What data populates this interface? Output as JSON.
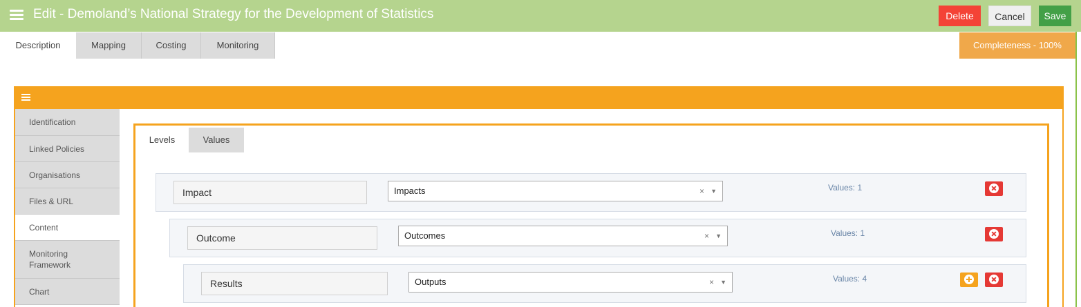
{
  "header": {
    "menu_icon": "hamburger-menu-icon",
    "title": "Edit - Demoland’s National Strategy for the Development of Statistics",
    "delete_label": "Delete",
    "cancel_label": "Cancel",
    "save_label": "Save",
    "color": "#b5d48e"
  },
  "top_tabs": [
    {
      "label": "Description",
      "active": true
    },
    {
      "label": "Mapping",
      "active": false
    },
    {
      "label": "Costing",
      "active": false
    },
    {
      "label": "Monitoring",
      "active": false
    }
  ],
  "completeness": "Completeness - 100%",
  "panel": {
    "menu_icon": "hamburger-menu-icon",
    "accent": "#f5a31e"
  },
  "side_menu": [
    {
      "label": "Identification",
      "active": false
    },
    {
      "label": "Linked Policies",
      "active": false
    },
    {
      "label": "Organisations",
      "active": false
    },
    {
      "label": "Files & URL",
      "active": false
    },
    {
      "label": "Content",
      "active": true
    },
    {
      "label": "Monitoring Framework",
      "active": false
    },
    {
      "label": "Chart",
      "active": false
    }
  ],
  "inner_tabs": [
    {
      "label": "Levels",
      "active": true
    },
    {
      "label": "Values",
      "active": false
    }
  ],
  "levels": [
    {
      "name": "Impact",
      "selected": "Impacts",
      "values_text": "Values: 1",
      "has_add": false
    },
    {
      "name": "Outcome",
      "selected": "Outcomes",
      "values_text": "Values: 1",
      "has_add": false
    },
    {
      "name": "Results",
      "selected": "Outputs",
      "values_text": "Values: 4",
      "has_add": true
    }
  ],
  "select_clear_glyph": "×",
  "select_arrow_glyph": "▼"
}
